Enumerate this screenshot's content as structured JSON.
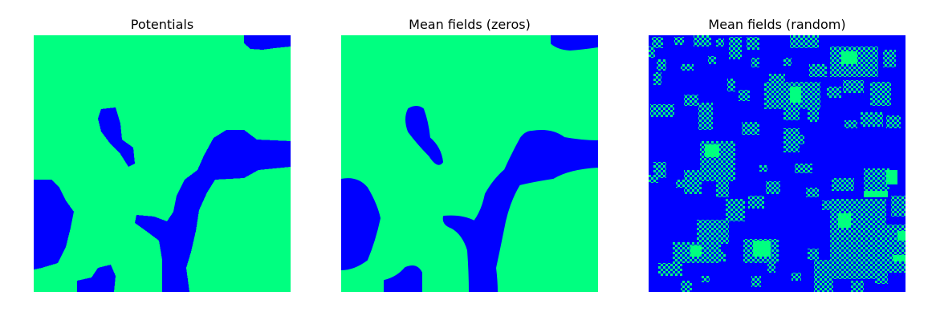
{
  "colors": {
    "state_a": "#0000ff",
    "state_b": "#00ff80",
    "background": "#ffffff"
  },
  "panels": [
    {
      "title": "Potentials",
      "style": "sharp"
    },
    {
      "title": "Mean fields (zeros)",
      "style": "smooth"
    },
    {
      "title": "Mean fields (random)",
      "style": "checker"
    }
  ]
}
